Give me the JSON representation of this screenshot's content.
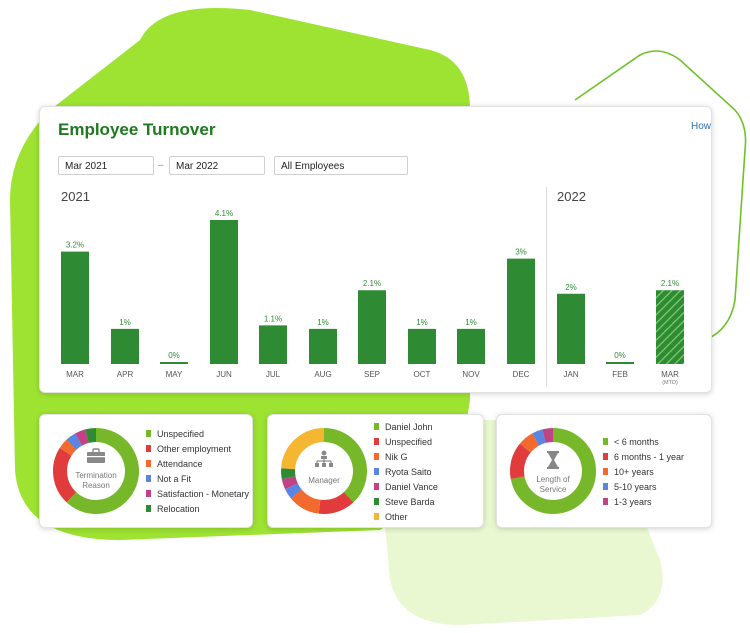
{
  "colors": {
    "bar": "#2e8b34",
    "title": "#1f7a1f",
    "lime": "#9ee332",
    "lime_light": "#c9f089",
    "pale": "#eaf8d2",
    "link": "#2a6ebb"
  },
  "header": {
    "title": "Employee Turnover",
    "help_link": "How"
  },
  "filters": {
    "start_date": "Mar 2021",
    "separator": "–",
    "end_date": "Mar 2022",
    "group": "All Employees"
  },
  "years": [
    "2021",
    "2022"
  ],
  "chart_data": {
    "type": "bar",
    "categories": [
      "MAR",
      "APR",
      "MAY",
      "JUN",
      "JUL",
      "AUG",
      "SEP",
      "OCT",
      "NOV",
      "DEC",
      "JAN",
      "FEB",
      "MAR"
    ],
    "category_notes": [
      "",
      "",
      "",
      "",
      "",
      "",
      "",
      "",
      "",
      "",
      "",
      "",
      "(MTD)"
    ],
    "values": [
      3.2,
      1,
      0,
      4.1,
      1.1,
      1,
      2.1,
      1,
      1,
      3,
      2,
      0,
      2.1
    ],
    "labels": [
      "3.2%",
      "1%",
      "0%",
      "4.1%",
      "1.1%",
      "1%",
      "2.1%",
      "1%",
      "1%",
      "3%",
      "2%",
      "0%",
      "2.1%"
    ],
    "year_of_bar": [
      "2021",
      "2021",
      "2021",
      "2021",
      "2021",
      "2021",
      "2021",
      "2021",
      "2021",
      "2021",
      "2022",
      "2022",
      "2022"
    ],
    "hatched_index": 12,
    "ylim": [
      0,
      4.1
    ]
  },
  "panels": [
    {
      "id": "termination",
      "center_label": [
        "Termination",
        "Reason"
      ],
      "icon": "briefcase-icon",
      "legend": [
        {
          "label": "Unspecified",
          "color": "#76b82a"
        },
        {
          "label": "Other employment",
          "color": "#e23b3b"
        },
        {
          "label": "Attendance",
          "color": "#f26a2e"
        },
        {
          "label": "Not a Fit",
          "color": "#5a86e0"
        },
        {
          "label": "Satisfaction - Monetary",
          "color": "#c24286"
        },
        {
          "label": "Relocation",
          "color": "#2e8b34"
        }
      ],
      "donut": [
        0.62,
        0.22,
        0.04,
        0.04,
        0.04,
        0.04
      ]
    },
    {
      "id": "manager",
      "center_label": [
        "Manager"
      ],
      "icon": "org-chart-icon",
      "legend": [
        {
          "label": "Daniel John",
          "color": "#76b82a"
        },
        {
          "label": "Unspecified",
          "color": "#e23b3b"
        },
        {
          "label": "Nik G",
          "color": "#f26a2e"
        },
        {
          "label": "Ryota Saito",
          "color": "#5a86e0"
        },
        {
          "label": "Daniel Vance",
          "color": "#c24286"
        },
        {
          "label": "Steve Barda",
          "color": "#2e8b34"
        },
        {
          "label": "Other",
          "color": "#f5b731"
        }
      ],
      "donut": [
        0.38,
        0.14,
        0.12,
        0.04,
        0.04,
        0.04,
        0.24
      ]
    },
    {
      "id": "service",
      "center_label": [
        "Length of",
        "Service"
      ],
      "icon": "hourglass-icon",
      "legend": [
        {
          "label": "< 6 months",
          "color": "#76b82a"
        },
        {
          "label": "6 months - 1 year",
          "color": "#e23b3b"
        },
        {
          "label": "10+ years",
          "color": "#f26a2e"
        },
        {
          "label": "5-10 years",
          "color": "#5a86e0"
        },
        {
          "label": "1-3 years",
          "color": "#c24286"
        }
      ],
      "donut": [
        0.72,
        0.14,
        0.06,
        0.04,
        0.04
      ]
    }
  ]
}
